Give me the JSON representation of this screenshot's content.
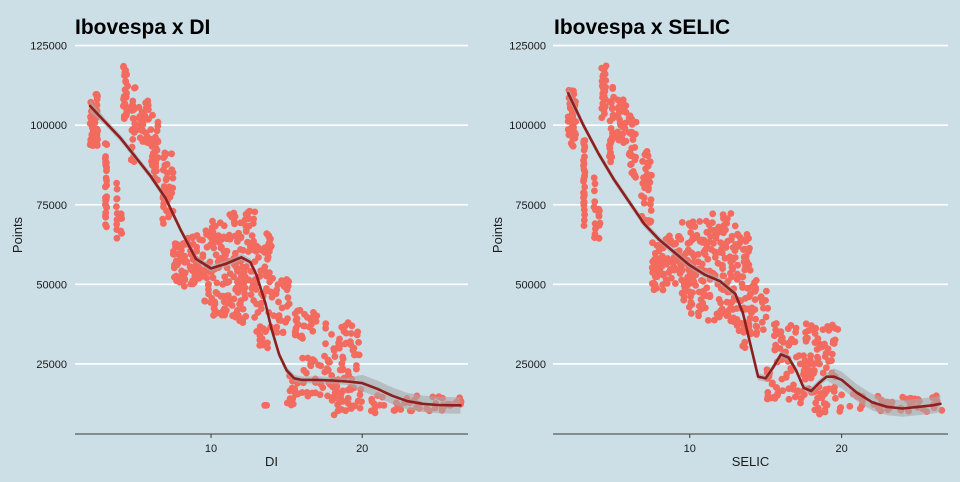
{
  "colors": {
    "background": "#cddfe6",
    "points": "#f36a5f",
    "smooth_line": "#8e1f1f",
    "confidence_band": "#a8a8a8",
    "grid": "#ffffff"
  },
  "chart_data": [
    {
      "type": "scatter",
      "title": "Ibovespa x DI",
      "xlabel": "DI",
      "ylabel": "Points",
      "xlim": [
        1,
        27
      ],
      "ylim": [
        3000,
        128000
      ],
      "x_ticks": [
        10,
        20
      ],
      "y_ticks": [
        25000,
        50000,
        75000,
        100000,
        125000
      ],
      "y_tick_labels": [
        "25000",
        "50000",
        "75000",
        "100000",
        "125000"
      ],
      "grid": "horizontal",
      "point_clusters": [
        {
          "x": [
            2.0,
            2.5
          ],
          "y": [
            93000,
            110000
          ],
          "n": 60
        },
        {
          "x": [
            3.0,
            3.1
          ],
          "y": [
            68000,
            96000
          ],
          "n": 30
        },
        {
          "x": [
            3.7,
            3.8
          ],
          "y": [
            64000,
            84000
          ],
          "n": 10
        },
        {
          "x": [
            4.0,
            4.1
          ],
          "y": [
            64000,
            75000
          ],
          "n": 8
        },
        {
          "x": [
            4.2,
            4.5
          ],
          "y": [
            102000,
            119000
          ],
          "n": 26
        },
        {
          "x": [
            4.7,
            5.0
          ],
          "y": [
            88000,
            112000
          ],
          "n": 24
        },
        {
          "x": [
            5.2,
            5.9
          ],
          "y": [
            94000,
            108000
          ],
          "n": 30
        },
        {
          "x": [
            6.0,
            6.5
          ],
          "y": [
            82000,
            104000
          ],
          "n": 30
        },
        {
          "x": [
            6.8,
            7.5
          ],
          "y": [
            68000,
            92000
          ],
          "n": 40
        },
        {
          "x": [
            7.5,
            8.3
          ],
          "y": [
            48000,
            64000
          ],
          "n": 40
        },
        {
          "x": [
            8.4,
            9.5
          ],
          "y": [
            50000,
            66000
          ],
          "n": 40
        },
        {
          "x": [
            9.5,
            11.2
          ],
          "y": [
            40000,
            70000
          ],
          "n": 90
        },
        {
          "x": [
            11.2,
            13.0
          ],
          "y": [
            38000,
            73000
          ],
          "n": 100
        },
        {
          "x": [
            13.0,
            14.0
          ],
          "y": [
            30000,
            66000
          ],
          "n": 60
        },
        {
          "x": [
            13.5,
            14.2
          ],
          "y": [
            12000,
            12000
          ],
          "n": 2
        },
        {
          "x": [
            14.0,
            15.2
          ],
          "y": [
            34000,
            52000
          ],
          "n": 30
        },
        {
          "x": [
            15.0,
            15.8
          ],
          "y": [
            12000,
            22000
          ],
          "n": 20
        },
        {
          "x": [
            15.5,
            17.0
          ],
          "y": [
            33000,
            42000
          ],
          "n": 30
        },
        {
          "x": [
            16.0,
            18.5
          ],
          "y": [
            14000,
            28000
          ],
          "n": 40
        },
        {
          "x": [
            17.5,
            19.8
          ],
          "y": [
            20000,
            38000
          ],
          "n": 50
        },
        {
          "x": [
            18.0,
            20.0
          ],
          "y": [
            9000,
            18000
          ],
          "n": 30
        },
        {
          "x": [
            20.5,
            21.5
          ],
          "y": [
            9000,
            16000
          ],
          "n": 10
        },
        {
          "x": [
            22.0,
            26.7
          ],
          "y": [
            10000,
            15000
          ],
          "n": 40
        }
      ],
      "smooth_curve": {
        "x": [
          2,
          3,
          4,
          5,
          6,
          7,
          8,
          9,
          10,
          11,
          12,
          12.6,
          13,
          13.6,
          14,
          14.5,
          15,
          15.5,
          16,
          17,
          18,
          19,
          20,
          21,
          22,
          23,
          24,
          25,
          26,
          26.5
        ],
        "y": [
          106000,
          101000,
          96000,
          90000,
          84000,
          77000,
          67000,
          58000,
          55000,
          56500,
          58500,
          57000,
          53000,
          44000,
          36000,
          28000,
          23000,
          20500,
          20000,
          20000,
          19800,
          19500,
          19000,
          17200,
          15000,
          13300,
          12500,
          12100,
          12000,
          12000
        ]
      }
    },
    {
      "type": "scatter",
      "title": "Ibovespa x SELIC",
      "xlabel": "SELIC",
      "ylabel": "Points",
      "xlim": [
        1,
        27
      ],
      "ylim": [
        3000,
        128000
      ],
      "x_ticks": [
        10,
        20
      ],
      "y_ticks": [
        25000,
        50000,
        75000,
        100000,
        125000
      ],
      "y_tick_labels": [
        "25000",
        "50000",
        "75000",
        "100000",
        "125000"
      ],
      "grid": "horizontal",
      "point_clusters": [
        {
          "x": [
            2.0,
            2.5
          ],
          "y": [
            93000,
            111000
          ],
          "n": 60
        },
        {
          "x": [
            3.0,
            3.1
          ],
          "y": [
            68000,
            96000
          ],
          "n": 30
        },
        {
          "x": [
            3.7,
            3.8
          ],
          "y": [
            64000,
            84000
          ],
          "n": 10
        },
        {
          "x": [
            4.0,
            4.1
          ],
          "y": [
            64000,
            75000
          ],
          "n": 8
        },
        {
          "x": [
            4.2,
            4.5
          ],
          "y": [
            102000,
            119000
          ],
          "n": 26
        },
        {
          "x": [
            4.7,
            5.0
          ],
          "y": [
            88000,
            112000
          ],
          "n": 24
        },
        {
          "x": [
            5.2,
            5.9
          ],
          "y": [
            94000,
            108000
          ],
          "n": 30
        },
        {
          "x": [
            6.0,
            6.5
          ],
          "y": [
            82000,
            104000
          ],
          "n": 30
        },
        {
          "x": [
            6.8,
            7.5
          ],
          "y": [
            68000,
            92000
          ],
          "n": 40
        },
        {
          "x": [
            7.5,
            8.3
          ],
          "y": [
            48000,
            64000
          ],
          "n": 40
        },
        {
          "x": [
            8.4,
            9.5
          ],
          "y": [
            50000,
            66000
          ],
          "n": 40
        },
        {
          "x": [
            9.5,
            11.2
          ],
          "y": [
            40000,
            70000
          ],
          "n": 90
        },
        {
          "x": [
            11.2,
            13.0
          ],
          "y": [
            38000,
            73000
          ],
          "n": 100
        },
        {
          "x": [
            13.0,
            14.0
          ],
          "y": [
            30000,
            66000
          ],
          "n": 60
        },
        {
          "x": [
            14.0,
            15.2
          ],
          "y": [
            34000,
            52000
          ],
          "n": 30
        },
        {
          "x": [
            15.0,
            15.8
          ],
          "y": [
            14000,
            24000
          ],
          "n": 20
        },
        {
          "x": [
            15.5,
            17.0
          ],
          "y": [
            24000,
            38000
          ],
          "n": 30
        },
        {
          "x": [
            16.0,
            18.5
          ],
          "y": [
            12000,
            28000
          ],
          "n": 40
        },
        {
          "x": [
            17.5,
            19.8
          ],
          "y": [
            20000,
            38000
          ],
          "n": 50
        },
        {
          "x": [
            18.0,
            20.0
          ],
          "y": [
            9000,
            18000
          ],
          "n": 30
        },
        {
          "x": [
            20.5,
            21.5
          ],
          "y": [
            9000,
            16000
          ],
          "n": 10
        },
        {
          "x": [
            22.0,
            26.7
          ],
          "y": [
            10000,
            15000
          ],
          "n": 40
        }
      ],
      "smooth_curve": {
        "x": [
          2,
          3,
          4,
          5,
          6,
          7,
          8,
          9,
          10,
          11,
          12,
          13,
          13.5,
          14,
          14.5,
          15,
          15.5,
          16,
          16.5,
          17,
          17.5,
          18,
          18.5,
          19,
          19.5,
          20,
          21,
          22,
          23,
          24,
          25,
          26,
          26.5
        ],
        "y": [
          110000,
          100000,
          91000,
          83000,
          76000,
          69000,
          64000,
          60000,
          56000,
          53000,
          51000,
          47000,
          41000,
          31000,
          21000,
          20500,
          24000,
          28000,
          27000,
          23000,
          17500,
          16500,
          19000,
          21000,
          21000,
          20000,
          16000,
          13000,
          11500,
          11000,
          11500,
          12000,
          12500
        ]
      }
    }
  ]
}
